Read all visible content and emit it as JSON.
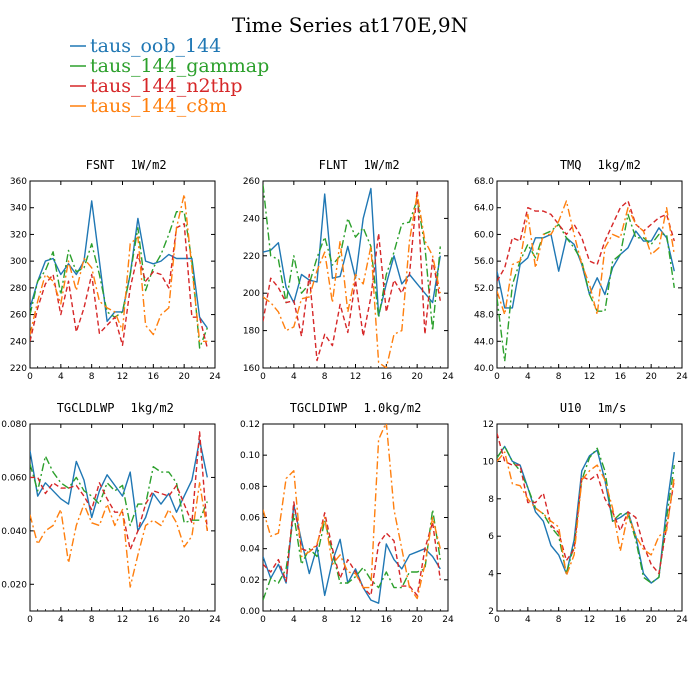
{
  "title": "Time Series at170E,9N",
  "colors": {
    "taus_oob_144": "#1f77b4",
    "taus_144_gammap": "#2ca02c",
    "taus_144_n2thp": "#d62728",
    "taus_144_c8m": "#ff7f0e"
  },
  "legend": [
    {
      "name": "taus_oob_144",
      "color": "#1f77b4",
      "dash": "solid"
    },
    {
      "name": "taus_144_gammap",
      "color": "#2ca02c",
      "dash": "dashdot"
    },
    {
      "name": "taus_144_n2thp",
      "color": "#d62728",
      "dash": "dashed"
    },
    {
      "name": "taus_144_c8m",
      "color": "#ff7f0e",
      "dash": "dashdot"
    }
  ],
  "chart_data": [
    {
      "type": "line",
      "title_left": "FSNT",
      "title_right": "1W/m2",
      "xlim": [
        0,
        24
      ],
      "ylim": [
        220,
        360
      ],
      "xticks": [
        0,
        4,
        8,
        12,
        16,
        20,
        24
      ],
      "yticks": [
        220,
        240,
        260,
        280,
        300,
        320,
        340,
        360
      ],
      "ytick_labels": [
        "220",
        "240",
        "260",
        "280",
        "300",
        "320",
        "340",
        "360"
      ],
      "x": [
        0,
        1,
        2,
        3,
        4,
        5,
        6,
        7,
        8,
        9,
        10,
        11,
        12,
        13,
        14,
        15,
        16,
        17,
        18,
        19,
        20,
        21,
        22,
        23
      ],
      "series": [
        {
          "name": "taus_oob_144",
          "values": [
            265,
            285,
            300,
            302,
            290,
            298,
            290,
            300,
            345,
            300,
            255,
            262,
            262,
            290,
            332,
            300,
            298,
            300,
            305,
            302,
            302,
            302,
            258,
            250
          ]
        },
        {
          "name": "taus_144_gammap",
          "values": [
            260,
            285,
            293,
            307,
            275,
            308,
            292,
            295,
            313,
            290,
            262,
            258,
            262,
            290,
            325,
            278,
            295,
            305,
            320,
            337,
            337,
            300,
            235,
            250
          ]
        },
        {
          "name": "taus_144_n2thp",
          "values": [
            240,
            265,
            283,
            290,
            260,
            285,
            247,
            265,
            290,
            246,
            252,
            258,
            237,
            280,
            305,
            285,
            292,
            290,
            280,
            325,
            328,
            258,
            258,
            235
          ]
        },
        {
          "name": "taus_144_c8m",
          "values": [
            245,
            270,
            290,
            285,
            268,
            300,
            278,
            302,
            295,
            270,
            265,
            262,
            248,
            313,
            318,
            252,
            245,
            260,
            265,
            325,
            350,
            295,
            240,
            240
          ]
        }
      ]
    },
    {
      "type": "line",
      "title_left": "FLNT",
      "title_right": "1W/m2",
      "xlim": [
        0,
        24
      ],
      "ylim": [
        160,
        260
      ],
      "xticks": [
        0,
        4,
        8,
        12,
        16,
        20,
        24
      ],
      "yticks": [
        160,
        180,
        200,
        220,
        240,
        260
      ],
      "ytick_labels": [
        "160",
        "180",
        "200",
        "220",
        "240",
        "260"
      ],
      "x": [
        0,
        1,
        2,
        3,
        4,
        5,
        6,
        7,
        8,
        9,
        10,
        11,
        12,
        13,
        14,
        15,
        16,
        17,
        18,
        19,
        20,
        21,
        22,
        23
      ],
      "series": [
        {
          "name": "taus_oob_144",
          "values": [
            222,
            223,
            227,
            203,
            195,
            210,
            207,
            206,
            253,
            208,
            209,
            225,
            208,
            240,
            256,
            188,
            205,
            220,
            205,
            210,
            205,
            200,
            195,
            220
          ]
        },
        {
          "name": "taus_144_gammap",
          "values": [
            258,
            220,
            218,
            195,
            220,
            200,
            205,
            219,
            230,
            215,
            220,
            240,
            230,
            235,
            225,
            187,
            210,
            222,
            237,
            238,
            250,
            225,
            180,
            225
          ]
        },
        {
          "name": "taus_144_n2thp",
          "values": [
            185,
            208,
            203,
            195,
            196,
            177,
            210,
            164,
            178,
            172,
            194,
            179,
            207,
            177,
            198,
            232,
            190,
            207,
            200,
            210,
            255,
            178,
            218,
            196
          ]
        },
        {
          "name": "taus_144_c8m",
          "values": [
            198,
            195,
            190,
            180,
            182,
            197,
            198,
            212,
            222,
            195,
            228,
            190,
            210,
            205,
            225,
            163,
            160,
            178,
            180,
            228,
            253,
            228,
            220,
            200
          ]
        }
      ]
    },
    {
      "type": "line",
      "title_left": "TMQ",
      "title_right": "1kg/m2",
      "xlim": [
        0,
        24
      ],
      "ylim": [
        40,
        68
      ],
      "xticks": [
        0,
        4,
        8,
        12,
        16,
        20,
        24
      ],
      "yticks": [
        40,
        44,
        48,
        52,
        56,
        60,
        64,
        68
      ],
      "ytick_labels": [
        "40.0",
        "44.0",
        "48.0",
        "52.0",
        "56.0",
        "60.0",
        "64.0",
        "68.0"
      ],
      "x": [
        0,
        1,
        2,
        3,
        4,
        5,
        6,
        7,
        8,
        9,
        10,
        11,
        12,
        13,
        14,
        15,
        16,
        17,
        18,
        19,
        20,
        21,
        22,
        23
      ],
      "series": [
        {
          "name": "taus_oob_144",
          "values": [
            54.5,
            49.0,
            49.0,
            55.5,
            56.5,
            59.5,
            59.5,
            60.0,
            54.5,
            59.5,
            58.5,
            55.5,
            51.0,
            53.5,
            51.0,
            55.0,
            57.0,
            58.0,
            60.5,
            59.0,
            59.0,
            61.0,
            59.5,
            54.5
          ]
        },
        {
          "name": "taus_144_gammap",
          "values": [
            50.5,
            41.0,
            52.5,
            56.0,
            58.5,
            56.5,
            60.0,
            60.5,
            61.5,
            59.5,
            58.0,
            56.0,
            51.0,
            48.5,
            48.5,
            56.0,
            57.0,
            63.0,
            59.5,
            59.5,
            58.5,
            60.0,
            60.0,
            52.0
          ]
        },
        {
          "name": "taus_144_n2thp",
          "values": [
            53.0,
            55.0,
            59.5,
            59.0,
            64.0,
            63.5,
            63.5,
            63.0,
            61.5,
            60.0,
            61.5,
            59.5,
            56.0,
            55.5,
            59.0,
            61.5,
            64.0,
            65.0,
            61.5,
            60.5,
            61.5,
            62.5,
            63.0,
            59.0
          ]
        },
        {
          "name": "taus_144_c8m",
          "values": [
            51.5,
            48.0,
            55.5,
            56.0,
            63.0,
            55.0,
            60.0,
            60.0,
            62.0,
            65.0,
            60.0,
            55.5,
            52.5,
            48.0,
            58.0,
            60.0,
            59.5,
            64.0,
            61.5,
            60.5,
            57.0,
            58.0,
            64.0,
            57.0
          ]
        }
      ]
    },
    {
      "type": "line",
      "title_left": "TGCLDLWP",
      "title_right": "1kg/m2",
      "xlim": [
        0,
        24
      ],
      "ylim": [
        0.01,
        0.08
      ],
      "xticks": [
        0,
        4,
        8,
        12,
        16,
        20,
        24
      ],
      "yticks": [
        0.02,
        0.04,
        0.06,
        0.08
      ],
      "ytick_labels": [
        "0.020",
        "0.040",
        "0.060",
        "0.080"
      ],
      "x": [
        0,
        1,
        2,
        3,
        4,
        5,
        6,
        7,
        8,
        9,
        10,
        11,
        12,
        13,
        14,
        15,
        16,
        17,
        18,
        19,
        20,
        21,
        22,
        23
      ],
      "series": [
        {
          "name": "taus_oob_144",
          "values": [
            0.07,
            0.053,
            0.058,
            0.055,
            0.052,
            0.05,
            0.066,
            0.059,
            0.045,
            0.055,
            0.061,
            0.057,
            0.053,
            0.062,
            0.04,
            0.045,
            0.054,
            0.05,
            0.054,
            0.047,
            0.053,
            0.059,
            0.074,
            0.06
          ]
        },
        {
          "name": "taus_144_gammap",
          "values": [
            0.065,
            0.055,
            0.068,
            0.062,
            0.058,
            0.056,
            0.06,
            0.055,
            0.053,
            0.05,
            0.058,
            0.055,
            0.057,
            0.042,
            0.05,
            0.05,
            0.064,
            0.062,
            0.062,
            0.058,
            0.043,
            0.044,
            0.044,
            0.051
          ]
        },
        {
          "name": "taus_144_n2thp",
          "values": [
            0.06,
            0.06,
            0.054,
            0.058,
            0.056,
            0.056,
            0.057,
            0.053,
            0.048,
            0.058,
            0.052,
            0.047,
            0.047,
            0.033,
            0.04,
            0.05,
            0.055,
            0.054,
            0.053,
            0.057,
            0.05,
            0.043,
            0.077,
            0.04
          ]
        },
        {
          "name": "taus_144_c8m",
          "values": [
            0.046,
            0.035,
            0.04,
            0.042,
            0.048,
            0.028,
            0.042,
            0.05,
            0.043,
            0.042,
            0.05,
            0.042,
            0.048,
            0.019,
            0.031,
            0.042,
            0.044,
            0.042,
            0.048,
            0.043,
            0.034,
            0.038,
            0.058,
            0.04
          ]
        }
      ]
    },
    {
      "type": "line",
      "title_left": "TGCLDIWP",
      "title_right": "1.0kg/m2",
      "xlim": [
        0,
        24
      ],
      "ylim": [
        0,
        0.12
      ],
      "xticks": [
        0,
        4,
        8,
        12,
        16,
        20,
        24
      ],
      "yticks": [
        0,
        0.02,
        0.04,
        0.06,
        0.08,
        0.1,
        0.12
      ],
      "ytick_labels": [
        "0.00",
        "0.02",
        "0.04",
        "0.06",
        "0.08",
        "0.10",
        "0.12"
      ],
      "x": [
        0,
        1,
        2,
        3,
        4,
        5,
        6,
        7,
        8,
        9,
        10,
        11,
        12,
        13,
        14,
        15,
        16,
        17,
        18,
        19,
        20,
        21,
        22,
        23
      ],
      "series": [
        {
          "name": "taus_oob_144",
          "values": [
            0.035,
            0.021,
            0.03,
            0.018,
            0.068,
            0.045,
            0.024,
            0.041,
            0.01,
            0.032,
            0.046,
            0.018,
            0.027,
            0.015,
            0.007,
            0.005,
            0.043,
            0.033,
            0.027,
            0.036,
            0.038,
            0.04,
            0.035,
            0.027
          ]
        },
        {
          "name": "taus_144_gammap",
          "values": [
            0.007,
            0.021,
            0.018,
            0.027,
            0.062,
            0.03,
            0.04,
            0.035,
            0.058,
            0.038,
            0.018,
            0.018,
            0.022,
            0.028,
            0.02,
            0.015,
            0.025,
            0.015,
            0.015,
            0.025,
            0.025,
            0.027,
            0.065,
            0.033
          ]
        },
        {
          "name": "taus_144_n2thp",
          "values": [
            0.03,
            0.025,
            0.033,
            0.019,
            0.07,
            0.04,
            0.038,
            0.042,
            0.063,
            0.04,
            0.021,
            0.033,
            0.025,
            0.015,
            0.01,
            0.043,
            0.05,
            0.045,
            0.016,
            0.016,
            0.01,
            0.04,
            0.057,
            0.02
          ]
        },
        {
          "name": "taus_144_c8m",
          "values": [
            0.065,
            0.048,
            0.05,
            0.085,
            0.09,
            0.035,
            0.038,
            0.043,
            0.06,
            0.03,
            0.036,
            0.025,
            0.024,
            0.015,
            0.015,
            0.11,
            0.121,
            0.065,
            0.04,
            0.015,
            0.008,
            0.03,
            0.06,
            0.04
          ]
        }
      ]
    },
    {
      "type": "line",
      "title_left": "U10",
      "title_right": "1m/s",
      "xlim": [
        0,
        24
      ],
      "ylim": [
        2,
        12
      ],
      "xticks": [
        0,
        4,
        8,
        12,
        16,
        20,
        24
      ],
      "yticks": [
        2,
        4,
        6,
        8,
        10,
        12
      ],
      "ytick_labels": [
        "2",
        "4",
        "6",
        "8",
        "10",
        "12"
      ],
      "x": [
        0,
        1,
        2,
        3,
        4,
        5,
        6,
        7,
        8,
        9,
        10,
        11,
        12,
        13,
        14,
        15,
        16,
        17,
        18,
        19,
        20,
        21,
        22,
        23
      ],
      "series": [
        {
          "name": "taus_oob_144",
          "values": [
            10.2,
            10.8,
            10.0,
            9.8,
            8.6,
            7.3,
            6.8,
            5.5,
            5.0,
            4.0,
            5.8,
            9.5,
            10.3,
            10.6,
            9.0,
            6.8,
            7.0,
            7.3,
            6.0,
            4.0,
            3.5,
            3.8,
            7.5,
            10.5
          ]
        },
        {
          "name": "taus_144_gammap",
          "values": [
            10.2,
            10.8,
            10.0,
            9.5,
            8.6,
            7.5,
            7.2,
            6.5,
            6.0,
            4.0,
            5.5,
            9.0,
            10.2,
            10.7,
            9.5,
            6.8,
            7.2,
            7.2,
            5.8,
            3.8,
            3.5,
            3.8,
            7.0,
            9.8
          ]
        },
        {
          "name": "taus_144_n2thp",
          "values": [
            11.5,
            10.0,
            9.8,
            9.8,
            7.8,
            7.8,
            8.3,
            6.6,
            6.2,
            4.7,
            5.3,
            9.2,
            9.0,
            9.3,
            8.0,
            7.3,
            6.3,
            7.3,
            7.0,
            5.5,
            4.5,
            4.0,
            6.5,
            9.0
          ]
        },
        {
          "name": "taus_144_c8m",
          "values": [
            10.0,
            10.5,
            8.8,
            8.7,
            8.0,
            7.5,
            7.2,
            6.8,
            6.5,
            3.9,
            5.0,
            9.0,
            9.5,
            9.8,
            9.0,
            7.5,
            5.2,
            7.2,
            6.0,
            5.3,
            5.0,
            6.0,
            6.3,
            9.2
          ]
        }
      ]
    }
  ]
}
